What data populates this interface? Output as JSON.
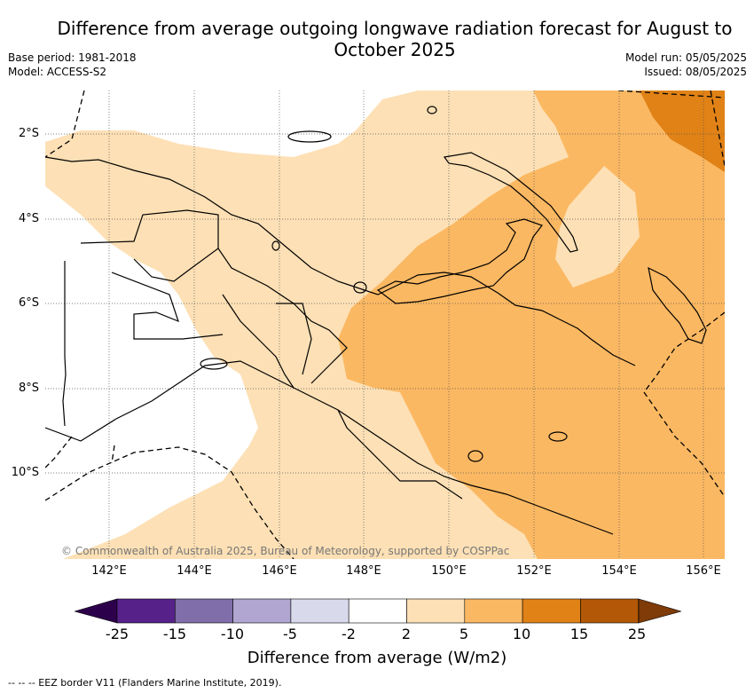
{
  "title": "Difference from average outgoing longwave radiation forecast for August to October 2025",
  "meta": {
    "base_period": "Base period: 1981-2018",
    "model": "Model: ACCESS-S2",
    "model_run": "Model run: 05/05/2025",
    "issued": "Issued: 08/05/2025"
  },
  "map": {
    "lat_labels": [
      "2°S",
      "4°S",
      "6°S",
      "8°S",
      "10°S"
    ],
    "lon_labels": [
      "142°E",
      "144°E",
      "146°E",
      "148°E",
      "150°E",
      "152°E",
      "154°E",
      "156°E"
    ],
    "copyright": "© Commonwealth of Australia 2025, Bureau of Meteorology, supported by COSPPac",
    "region_colors": {
      "2_to_5": "#fde0b5",
      "5_to_10": "#fbb862",
      "10_to_15": "#e08216",
      "-2_to_2": "#ffffff"
    }
  },
  "legend": {
    "label": "Difference from average (W/m2)",
    "ticks": [
      "-25",
      "-15",
      "-10",
      "-5",
      "-2",
      "2",
      "5",
      "10",
      "15",
      "25"
    ],
    "colors": [
      "#562189",
      "#7f6ea9",
      "#b0a6d1",
      "#d8d9ea",
      "#ffffff",
      "#fde0b5",
      "#fbb862",
      "#e08216",
      "#b35806"
    ],
    "under_color": "#2d004b",
    "over_color": "#7f3b08"
  },
  "footnote": "--  --  -- EEZ border V11 (Flanders Marine Institute, 2019)."
}
